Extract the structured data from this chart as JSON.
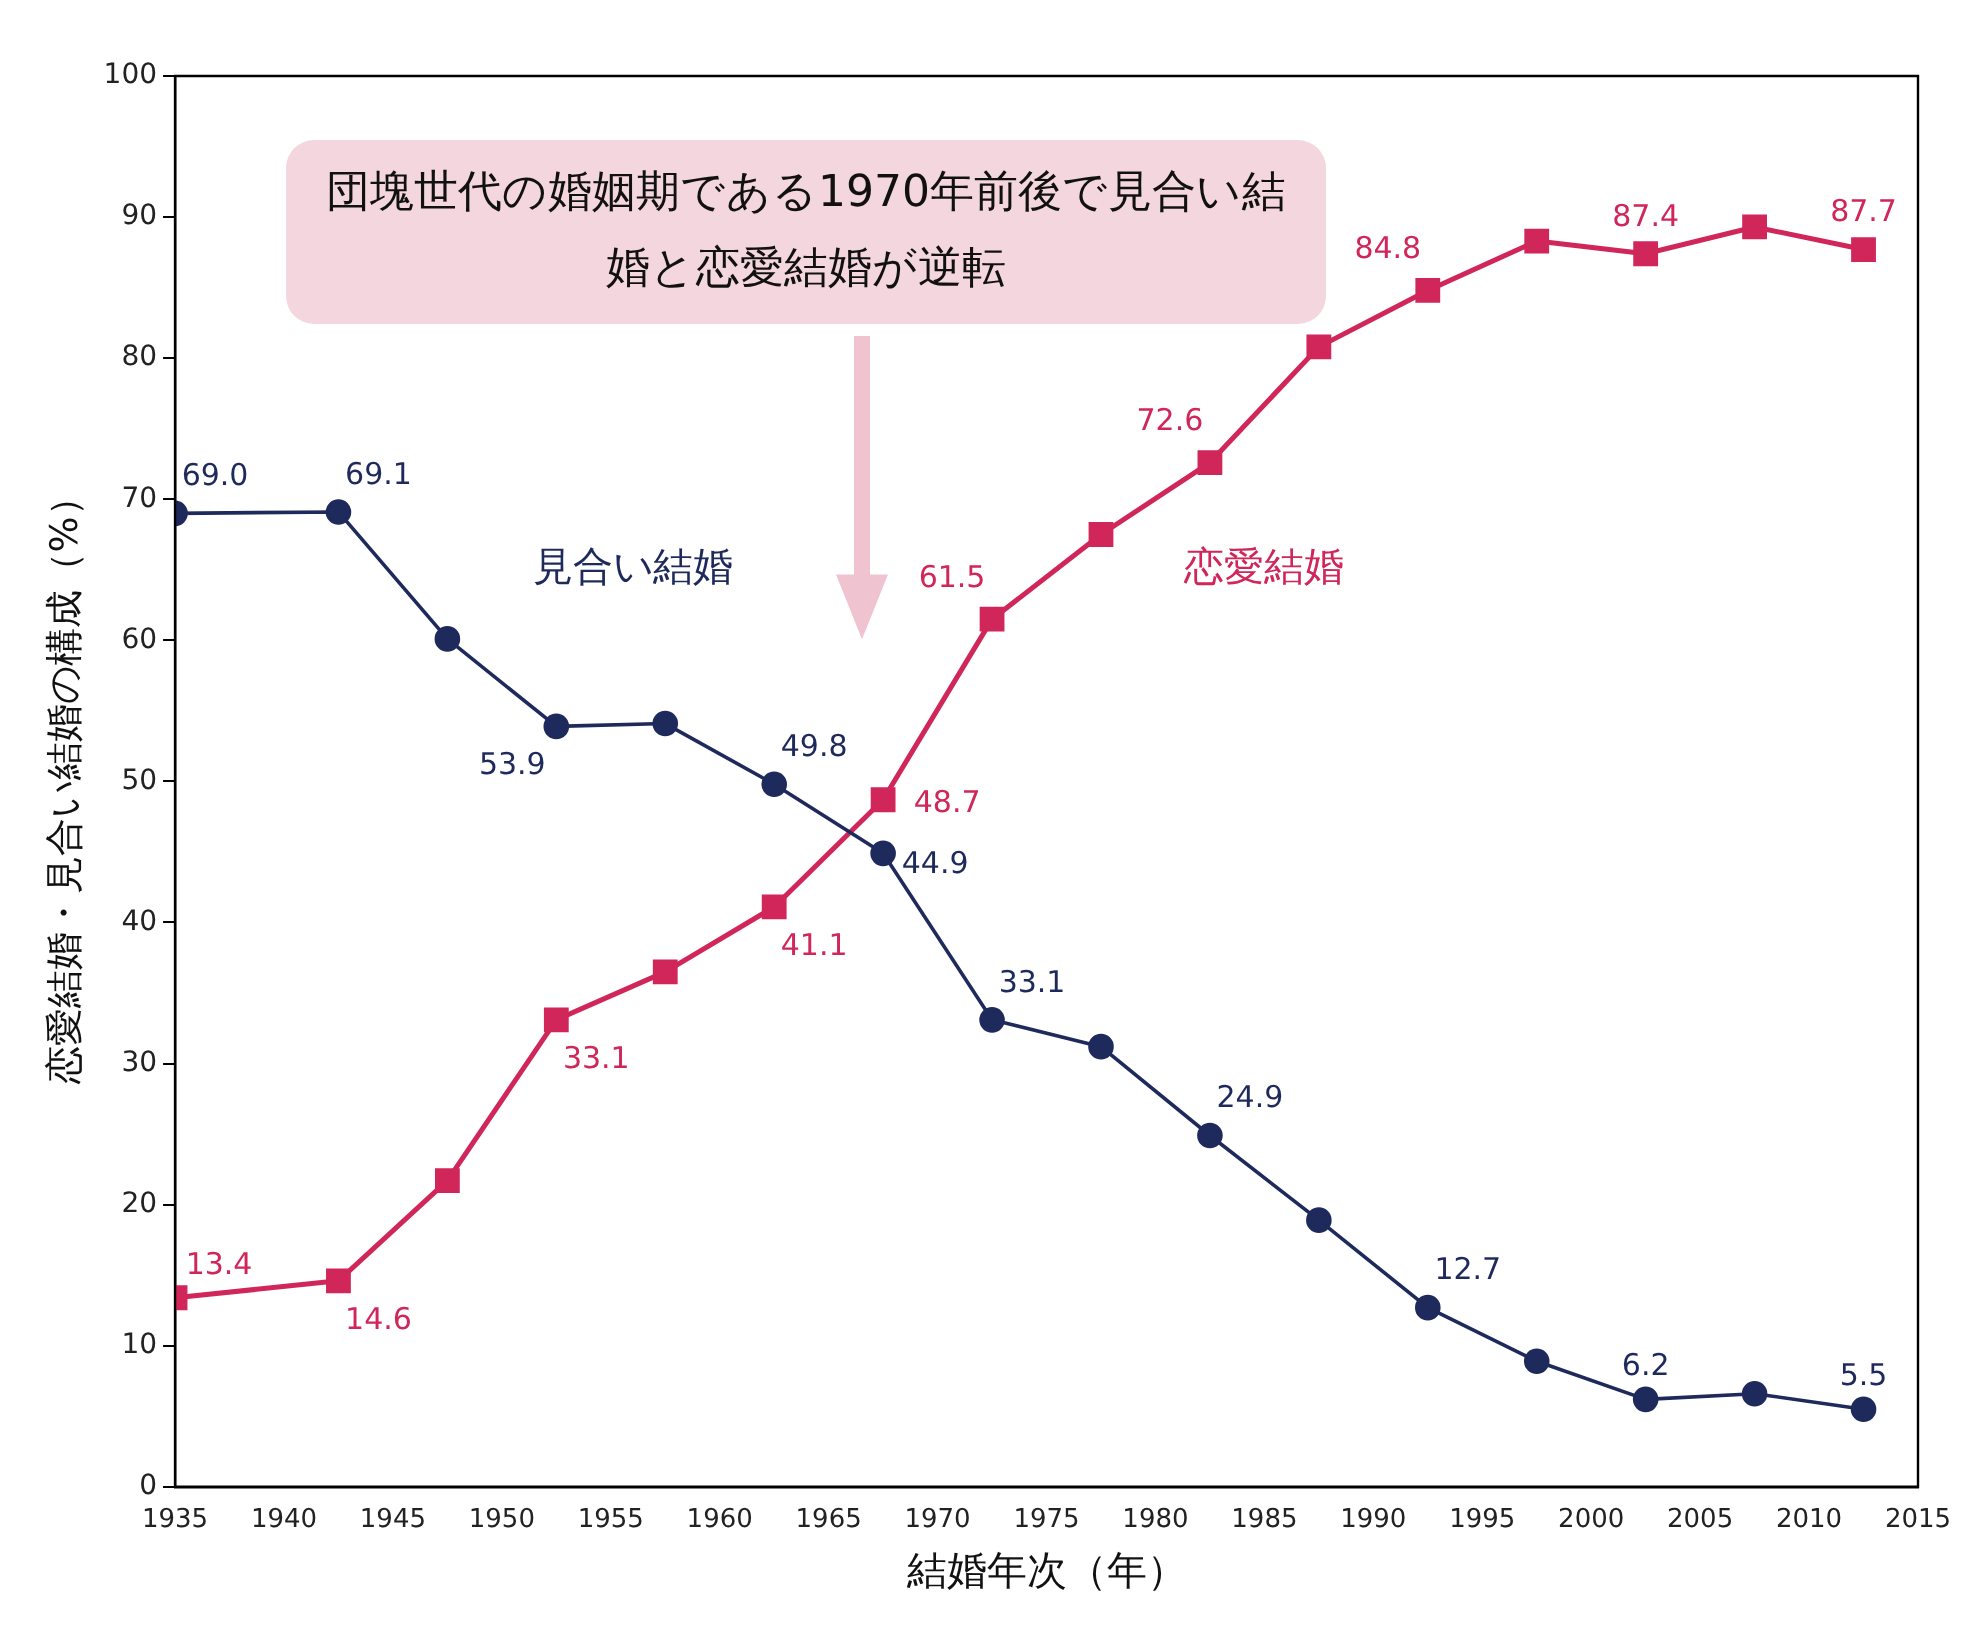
{
  "chart_data": {
    "type": "line",
    "xlabel": "結婚年次（年）",
    "ylabel": "恋愛結婚・見合い結婚の構成（%）",
    "annotations": [
      "団塊世代の婚姻期である1970年前後で見合い結婚と恋愛結婚が逆転"
    ],
    "x": [
      1935,
      1942.5,
      1947.5,
      1952.5,
      1957.5,
      1962.5,
      1967.5,
      1972.5,
      1977.5,
      1982.5,
      1987.5,
      1992.5,
      1997.5,
      2002.5,
      2007.5,
      2012.5
    ],
    "series": [
      {
        "name": "見合い結婚",
        "color": "#1f2a5c",
        "marker": "circle",
        "values": [
          69.0,
          69.1,
          60.1,
          53.9,
          54.1,
          49.8,
          44.9,
          33.1,
          31.2,
          24.9,
          18.9,
          12.7,
          8.9,
          6.2,
          6.6,
          5.5
        ],
        "value_labels": [
          "69.0",
          "69.1",
          null,
          "53.9",
          null,
          "49.8",
          "44.9",
          "33.1",
          null,
          "24.9",
          null,
          "12.7",
          null,
          "6.2",
          null,
          "5.5"
        ]
      },
      {
        "name": "恋愛結婚",
        "color": "#d0265a",
        "marker": "square",
        "values": [
          13.4,
          14.6,
          21.7,
          33.1,
          36.5,
          41.1,
          48.7,
          61.5,
          67.5,
          72.6,
          80.8,
          84.8,
          88.3,
          87.4,
          89.3,
          87.7
        ],
        "value_labels": [
          "13.4",
          "14.6",
          null,
          "33.1",
          null,
          "41.1",
          "48.7",
          "61.5",
          null,
          "72.6",
          null,
          "84.8",
          null,
          "87.4",
          null,
          "87.7"
        ]
      }
    ],
    "xlim": [
      1935,
      2015
    ],
    "xticks": [
      1935,
      1940,
      1945,
      1950,
      1955,
      1960,
      1965,
      1970,
      1975,
      1980,
      1985,
      1990,
      1995,
      2000,
      2005,
      2010,
      2015
    ],
    "ylim": [
      0,
      100
    ],
    "yticks": [
      0,
      10,
      20,
      30,
      40,
      50,
      60,
      70,
      80,
      90,
      100
    ],
    "grid": false,
    "legend": false
  }
}
